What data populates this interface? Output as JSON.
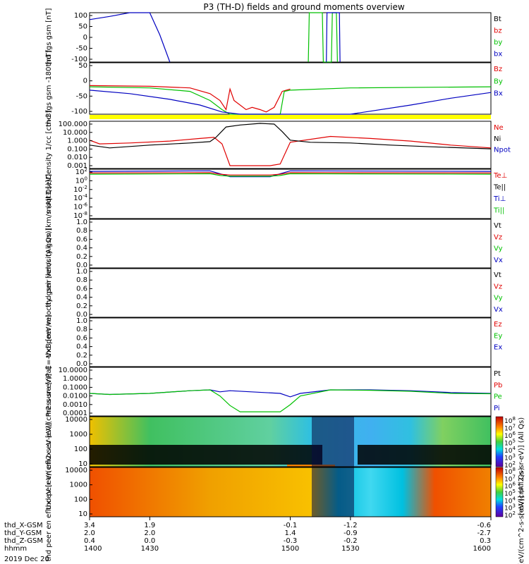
{
  "title": "P3 (TH-D) fields and ground moments overview",
  "date_label": "2019 Dec 20",
  "colors": {
    "black": "#000000",
    "red": "#e00000",
    "green": "#00c000",
    "blue": "#0000c0",
    "yellow": "#ffff00"
  },
  "chart_data": [
    {
      "type": "line",
      "panel": "fgs",
      "ylabel": "thd fgs gsm [nT]",
      "ylim": [
        -100,
        100
      ],
      "yticks": [
        "100",
        "50",
        "0",
        "-50",
        "-100"
      ],
      "legend": [
        {
          "name": "Bt",
          "color": "#000000"
        },
        {
          "name": "bz",
          "color": "#e00000"
        },
        {
          "name": "by",
          "color": "#00c000"
        },
        {
          "name": "bx",
          "color": "#0000c0"
        }
      ],
      "series": [
        {
          "name": "bx",
          "color": "#0000c0",
          "x": [
            1400,
            1410,
            1420,
            1430,
            1435,
            1440
          ],
          "y": [
            72,
            85,
            100,
            100,
            10,
            -100
          ]
        },
        {
          "name": "by",
          "color": "#00c000",
          "x": [
            1509,
            1509.5,
            1512,
            1516,
            1516.5,
            1520.5,
            1521,
            1523,
            1523.5
          ],
          "y": [
            -100,
            100,
            100,
            100,
            -100,
            -100,
            100,
            100,
            -100
          ]
        },
        {
          "name": "bx_b",
          "color": "#0000c0",
          "x": [
            1518,
            1518.3,
            1524.5,
            1524.8
          ],
          "y": [
            -100,
            100,
            100,
            -100
          ]
        }
      ]
    },
    {
      "type": "line",
      "panel": "fgs2",
      "ylabel": "thd fgs gsm -180 [nT]",
      "ylim": [
        -120,
        105
      ],
      "yticks": [
        "50",
        "0",
        "-50",
        "-100"
      ],
      "legend": [
        {
          "name": "Bz",
          "color": "#e00000"
        },
        {
          "name": "By",
          "color": "#00c000"
        },
        {
          "name": "Bx",
          "color": "#0000c0"
        }
      ],
      "series": [
        {
          "name": "Bz",
          "color": "#e00000",
          "x": [
            1400,
            1430,
            1450,
            1460,
            1465,
            1468,
            1470,
            1472,
            1478,
            1481,
            1485,
            1488,
            1492,
            1496,
            1500
          ],
          "y": [
            5,
            2,
            -5,
            -30,
            -60,
            -100,
            -10,
            -60,
            -100,
            -90,
            -100,
            -110,
            -90,
            -20,
            -10
          ]
        },
        {
          "name": "By",
          "color": "#00c000",
          "x": [
            1400,
            1430,
            1450,
            1460,
            1466,
            1470,
            1495,
            1497,
            1500,
            1530,
            1600
          ],
          "y": [
            0,
            -5,
            -20,
            -60,
            -100,
            -120,
            -120,
            -20,
            -15,
            -5,
            0
          ]
        },
        {
          "name": "Bx",
          "color": "#0000c0",
          "x": [
            1400,
            1420,
            1440,
            1455,
            1466,
            1475,
            1500,
            1530,
            1560,
            1580,
            1600
          ],
          "y": [
            -15,
            -30,
            -55,
            -80,
            -110,
            -125,
            -125,
            -120,
            -80,
            -50,
            -25
          ]
        }
      ]
    },
    {
      "type": "line",
      "panel": "density",
      "ylabel": "Density 1/cc [cm-3]",
      "scale": "log",
      "ylim": [
        0.001,
        100
      ],
      "yticks": [
        "100.000",
        "10.000",
        "1.000",
        "0.100",
        "0.010",
        "0.001"
      ],
      "legend": [
        {
          "name": "Ne",
          "color": "#e00000"
        },
        {
          "name": "Ni",
          "color": "#000000"
        },
        {
          "name": "Npot",
          "color": "#0000c0"
        }
      ],
      "series": [
        {
          "name": "Ne",
          "color": "#e00000",
          "x": [
            1400,
            1405,
            1420,
            1440,
            1455,
            1462,
            1466,
            1470,
            1490,
            1495,
            1500,
            1520,
            1540,
            1560,
            1580,
            1600
          ],
          "y": [
            1.0,
            0.4,
            0.5,
            0.8,
            1.5,
            2.0,
            0.4,
            0.002,
            0.002,
            0.003,
            0.6,
            2.5,
            1.5,
            0.8,
            0.3,
            0.15
          ]
        },
        {
          "name": "Ni",
          "color": "#000000",
          "x": [
            1400,
            1410,
            1430,
            1450,
            1460,
            1463,
            1468,
            1475,
            1485,
            1492,
            1496,
            1500,
            1510,
            1530,
            1550,
            1570,
            1600
          ],
          "y": [
            0.3,
            0.15,
            0.3,
            0.5,
            0.7,
            2,
            25,
            40,
            60,
            50,
            8,
            1,
            0.6,
            0.5,
            0.3,
            0.2,
            0.12
          ]
        }
      ]
    },
    {
      "type": "line",
      "panel": "moqt3",
      "ylabel": "moqt3 [eV]",
      "scale": "log",
      "ylim": [
        1e-09,
        1000.0
      ],
      "yticks": [
        "10^2",
        "10^0",
        "10^-2",
        "10^-4",
        "10^-6",
        "10^-8"
      ],
      "legend": [
        {
          "name": "Te⊥",
          "color": "#e00000"
        },
        {
          "name": "Te||",
          "color": "#000000"
        },
        {
          "name": "Ti⊥",
          "color": "#0000c0"
        },
        {
          "name": "Ti||",
          "color": "#00c000"
        }
      ],
      "series": [
        {
          "name": "Ti⊥",
          "color": "#0000c0",
          "x": [
            1400,
            1460,
            1465,
            1470,
            1490,
            1495,
            1500,
            1600
          ],
          "y": [
            300,
            400,
            80,
            15,
            15,
            80,
            400,
            300
          ]
        },
        {
          "name": "Te⊥",
          "color": "#e00000",
          "x": [
            1400,
            1460,
            1465,
            1470,
            1490,
            1495,
            1500,
            1600
          ],
          "y": [
            120,
            150,
            60,
            40,
            40,
            60,
            150,
            120
          ]
        },
        {
          "name": "Ti||",
          "color": "#00c000",
          "x": [
            1400,
            1460,
            1465,
            1470,
            1490,
            1495,
            1500,
            1600
          ],
          "y": [
            60,
            80,
            30,
            20,
            20,
            30,
            80,
            60
          ]
        }
      ]
    },
    {
      "type": "line",
      "panel": "peir",
      "ylabel": "thd peir velocity gsm [km/s (All Qs)]",
      "ylim": [
        0,
        1
      ],
      "yticks": [
        "1.0",
        "0.8",
        "0.6",
        "0.4",
        "0.2",
        "0.0"
      ],
      "legend": [
        {
          "name": "Vt",
          "color": "#000000"
        },
        {
          "name": "Vz",
          "color": "#e00000"
        },
        {
          "name": "Vy",
          "color": "#00c000"
        },
        {
          "name": "Vx",
          "color": "#0000c0"
        }
      ],
      "series": []
    },
    {
      "type": "line",
      "panel": "peer",
      "ylabel": "thd peer velocity gsm [km/s (All Qs)]",
      "ylim": [
        0,
        1
      ],
      "yticks": [
        "1.0",
        "0.8",
        "0.6",
        "0.4",
        "0.2",
        "0.0"
      ],
      "legend": [
        {
          "name": "Vt",
          "color": "#000000"
        },
        {
          "name": "Vz",
          "color": "#e00000"
        },
        {
          "name": "Vy",
          "color": "#00c000"
        },
        {
          "name": "Vx",
          "color": "#0000c0"
        }
      ],
      "series": []
    },
    {
      "type": "line",
      "panel": "efield",
      "ylabel": "E=-VxB [mV/m]",
      "ylim": [
        0,
        1
      ],
      "yticks": [
        "1.0",
        "0.8",
        "0.6",
        "0.4",
        "0.2",
        "0.0"
      ],
      "legend": [
        {
          "name": "Ez",
          "color": "#e00000"
        },
        {
          "name": "Ey",
          "color": "#00c000"
        },
        {
          "name": "Ex",
          "color": "#0000c0"
        }
      ],
      "series": []
    },
    {
      "type": "line",
      "panel": "pressure",
      "ylabel": "Pressure [nPa]",
      "scale": "log",
      "ylim": [
        5e-05,
        20
      ],
      "yticks": [
        "10.0000",
        "1.0000",
        "0.1000",
        "0.0100",
        "0.0010",
        "0.0001"
      ],
      "legend": [
        {
          "name": "Pt",
          "color": "#000000"
        },
        {
          "name": "Pb",
          "color": "#e00000"
        },
        {
          "name": "Pe",
          "color": "#00c000"
        },
        {
          "name": "Pi",
          "color": "#0000c0"
        }
      ],
      "series": [
        {
          "name": "Pi",
          "color": "#0000c0",
          "x": [
            1400,
            1410,
            1430,
            1450,
            1460,
            1465,
            1470,
            1495,
            1500,
            1505,
            1520,
            1540,
            1560,
            1580,
            1600
          ],
          "y": [
            0.02,
            0.015,
            0.02,
            0.04,
            0.05,
            0.03,
            0.04,
            0.02,
            0.008,
            0.02,
            0.05,
            0.05,
            0.04,
            0.025,
            0.02
          ]
        },
        {
          "name": "Pe",
          "color": "#00c000",
          "x": [
            1400,
            1410,
            1430,
            1450,
            1460,
            1465,
            1470,
            1475,
            1495,
            1500,
            1505,
            1520,
            1540,
            1560,
            1580,
            1600
          ],
          "y": [
            0.02,
            0.015,
            0.02,
            0.04,
            0.05,
            0.01,
            0.0008,
            0.00015,
            0.00015,
            0.001,
            0.01,
            0.05,
            0.045,
            0.035,
            0.02,
            0.018
          ]
        }
      ]
    },
    {
      "type": "heatmap",
      "panel": "peir_en",
      "ylabel": "thd peir en eflux eV [eV/(cm2-s-sr-eV)]",
      "scale": "log",
      "ylim": [
        5,
        30000
      ],
      "yticks": [
        "10000",
        "1000",
        "100",
        "10"
      ],
      "colorbar": {
        "label": "[eV/(cm^2-s-sr-eV)] (All Qs)",
        "ticks": [
          "10^8",
          "10^7",
          "10^6",
          "10^5",
          "10^4",
          "10^3",
          "10^2"
        ]
      }
    },
    {
      "type": "heatmap",
      "panel": "peer_en",
      "ylabel": "thd peer en eflux eV [eV/(cm2-s-sr-eV)]",
      "scale": "log",
      "ylim": [
        5,
        30000
      ],
      "yticks": [
        "10000",
        "1000",
        "100",
        "10"
      ],
      "colorbar": {
        "label": "[eV/(cm^2-s-sr-eV)] (All Qs)",
        "ticks": [
          "10^8",
          "10^7",
          "10^6",
          "10^5",
          "10^4",
          "10^3",
          "10^2"
        ]
      }
    }
  ],
  "x_axis": {
    "range": [
      1400,
      1600
    ],
    "rows": [
      {
        "label": "thd_X-GSM",
        "values": [
          "3.4",
          "1.9",
          "-0.1",
          "-1.2",
          "-0.6"
        ]
      },
      {
        "label": "thd_Y-GSM",
        "values": [
          "2.0",
          "2.0",
          "1.4",
          "-0.9",
          "-2.7"
        ]
      },
      {
        "label": "thd_Z-GSM",
        "values": [
          "0.4",
          "0.0",
          "-0.3",
          "-0.2",
          "0.3"
        ]
      },
      {
        "label": "hhmm",
        "values": [
          "1400",
          "1430",
          "1500",
          "1530",
          "1600"
        ]
      }
    ]
  }
}
